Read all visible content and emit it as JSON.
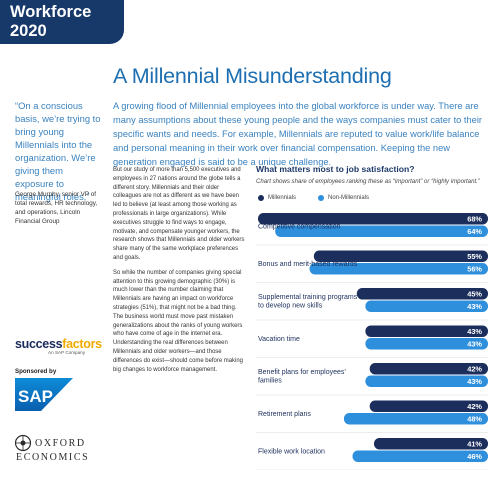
{
  "header": {
    "title": "Workforce 2020"
  },
  "main": {
    "title": "A Millennial Misunderstanding",
    "intro": "A growing flood of Millennial employees into the global workforce is under way. There are many assumptions about these young people and the ways companies must cater to their specific wants and needs. For example, Millennials are reputed to value work/life balance and personal meaning in their work over financial compensation. Keeping the new generation engaged is said to be a unique challenge."
  },
  "sidebar": {
    "quote": "“On a conscious basis, we’re trying to bring young Millennials into the organization. We’re giving them exposure to meaningful roles.”",
    "attribution": "George Murphy, senior VP of total rewards, HR technology, and operations, Lincoln Financial Group",
    "logo_sf_main": "success",
    "logo_sf_accent": "factors",
    "logo_sf_sub": "An SAP Company",
    "sponsored": "Sponsored by",
    "sap_text": "SAP",
    "oxford_line1": "OXFORD",
    "oxford_line2": "ECONOMICS"
  },
  "body": {
    "p1": "But our study of more than 5,500 executives and employees in 27 nations around the globe tells a different story. Millennials and their older colleagues are not as different as we have been led to believe (at least among those working as professionals in large organizations). While executives struggle to find ways to engage, motivate, and compensate younger workers, the research shows that Millennials and older workers share many of the same workplace preferences and goals.",
    "p2": "So while the number of companies giving special attention to this growing demographic (30%) is much lower than the number claiming that Millennials are having an impact on workforce strategies (51%), that might not be a bad thing. The business world must move past mistaken generalizations about the ranks of young workers who have come of age in the internet era. Understanding the real differences between Millennials and older workers—and those differences do exist—should come before making big changes to workforce management."
  },
  "chart_header": {
    "title": "What matters most to job satisfaction?",
    "subtitle": "Chart shows share of employees ranking these as “important” or “highly important.”"
  },
  "colors": {
    "millennials": "#1b2e5c",
    "non_millennials": "#2e8fdc",
    "title_blue": "#1e6fb1",
    "header_navy": "#17396a"
  },
  "chart_data": {
    "type": "bar",
    "orientation": "horizontal",
    "categories": [
      "Competitive compensation",
      "Bonus and merit-based rewards",
      "Supplemental training programs to develop new skills",
      "Vacation time",
      "Benefit plans for employees’ families",
      "Retirement plans",
      "Flexible work location"
    ],
    "series": [
      {
        "name": "Millennials",
        "values": [
          68,
          55,
          45,
          43,
          42,
          42,
          41
        ]
      },
      {
        "name": "Non-Millennials",
        "values": [
          64,
          56,
          43,
          43,
          43,
          48,
          46
        ]
      }
    ],
    "value_suffix": "%",
    "legend": "top-left"
  }
}
